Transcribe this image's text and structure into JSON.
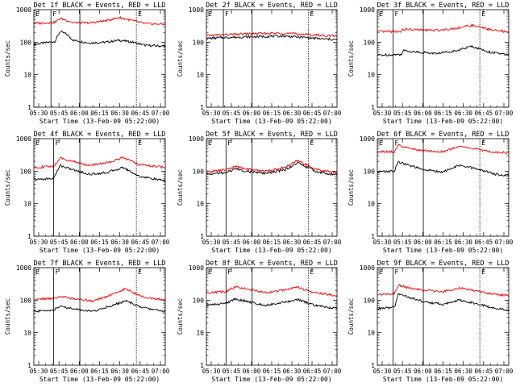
{
  "chart_data": [
    {
      "type": "line",
      "title": "Det 1f BLACK = Events, RED = LLD",
      "xlabel": "Start Time (13-Feb-09 05:22:00)",
      "ylabel": "Counts/sec",
      "x_ticks": [
        "05:30",
        "05:45",
        "06:00",
        "06:15",
        "06:30",
        "06:45",
        "07:00"
      ],
      "y_ticks": [
        "1",
        "10",
        "100",
        "1000"
      ],
      "yscale": "log",
      "ylim": [
        1,
        1000
      ],
      "markers": [
        "E",
        "F",
        "E"
      ],
      "series": [
        {
          "color": "#000000",
          "x": [
            0,
            0.08,
            0.16,
            0.2,
            0.25,
            0.3,
            0.42,
            0.55,
            0.65,
            0.75,
            0.85,
            1
          ],
          "y": [
            85,
            95,
            105,
            215,
            175,
            115,
            95,
            100,
            115,
            100,
            80,
            75
          ]
        },
        {
          "color": "#ff0000",
          "x": [
            0,
            0.08,
            0.16,
            0.2,
            0.25,
            0.3,
            0.42,
            0.55,
            0.65,
            0.75,
            0.85,
            1
          ],
          "y": [
            380,
            390,
            410,
            540,
            470,
            400,
            390,
            460,
            580,
            460,
            370,
            360
          ]
        }
      ]
    },
    {
      "type": "line",
      "title": "Det 2f BLACK = Events, RED = LLD",
      "xlabel": "Start Time (13-Feb-09 05:22:00)",
      "ylabel": "Counts/sec",
      "x_ticks": [
        "05:30",
        "05:45",
        "06:00",
        "06:15",
        "06:30",
        "06:45",
        "07:00"
      ],
      "y_ticks": [
        "1",
        "10",
        "100",
        "1000"
      ],
      "yscale": "log",
      "ylim": [
        1,
        1000
      ],
      "markers": [
        "E",
        "F",
        "E"
      ],
      "series": [
        {
          "color": "#000000",
          "x": [
            0,
            0.15,
            0.3,
            0.45,
            0.6,
            0.75,
            0.9,
            1
          ],
          "y": [
            130,
            140,
            145,
            150,
            155,
            140,
            125,
            120
          ]
        },
        {
          "color": "#ff0000",
          "x": [
            0,
            0.15,
            0.3,
            0.45,
            0.6,
            0.75,
            0.9,
            1
          ],
          "y": [
            160,
            170,
            180,
            185,
            190,
            175,
            160,
            155
          ]
        }
      ]
    },
    {
      "type": "line",
      "title": "Det 3f BLACK = Events, RED = LLD",
      "xlabel": "Start Time (13-Feb-09 05:22:00)",
      "ylabel": "Counts/sec",
      "x_ticks": [
        "05:30",
        "05:45",
        "06:00",
        "06:15",
        "06:30",
        "06:45",
        "07:00"
      ],
      "y_ticks": [
        "1",
        "10",
        "100",
        "1000"
      ],
      "yscale": "log",
      "ylim": [
        1,
        1000
      ],
      "markers": [
        "E",
        "F",
        "E"
      ],
      "series": [
        {
          "color": "#000000",
          "x": [
            0,
            0.18,
            0.2,
            0.3,
            0.45,
            0.6,
            0.72,
            0.85,
            1
          ],
          "y": [
            40,
            42,
            55,
            50,
            45,
            55,
            75,
            50,
            40
          ]
        },
        {
          "color": "#ff0000",
          "x": [
            0,
            0.18,
            0.2,
            0.3,
            0.45,
            0.6,
            0.72,
            0.85,
            1
          ],
          "y": [
            210,
            215,
            250,
            240,
            230,
            270,
            330,
            250,
            200
          ]
        }
      ]
    },
    {
      "type": "line",
      "title": "Det 4f BLACK = Events, RED = LLD",
      "xlabel": "Start Time (13-Feb-09 05:22:00)",
      "ylabel": "Counts/sec",
      "x_ticks": [
        "05:30",
        "05:45",
        "06:00",
        "06:15",
        "06:30",
        "06:45",
        "07:00"
      ],
      "y_ticks": [
        "1",
        "10",
        "100",
        "1000"
      ],
      "yscale": "log",
      "ylim": [
        1,
        1000
      ],
      "markers": [
        "E",
        "F",
        "E"
      ],
      "series": [
        {
          "color": "#000000",
          "x": [
            0,
            0.15,
            0.2,
            0.3,
            0.42,
            0.55,
            0.68,
            0.8,
            1
          ],
          "y": [
            55,
            60,
            150,
            110,
            80,
            90,
            130,
            70,
            50
          ]
        },
        {
          "color": "#ff0000",
          "x": [
            0,
            0.15,
            0.2,
            0.3,
            0.42,
            0.55,
            0.68,
            0.8,
            1
          ],
          "y": [
            130,
            140,
            250,
            200,
            150,
            180,
            260,
            160,
            130
          ]
        }
      ]
    },
    {
      "type": "line",
      "title": "Det 5f BLACK = Events, RED = LLD",
      "xlabel": "Start Time (13-Feb-09 05:22:00)",
      "ylabel": "Counts/sec",
      "x_ticks": [
        "05:30",
        "05:45",
        "06:00",
        "06:15",
        "06:30",
        "06:45",
        "07:00"
      ],
      "y_ticks": [
        "1",
        "10",
        "100",
        "1000"
      ],
      "yscale": "log",
      "ylim": [
        1,
        1000
      ],
      "markers": [
        "E",
        "F",
        "E"
      ],
      "series": [
        {
          "color": "#000000",
          "x": [
            0,
            0.15,
            0.22,
            0.3,
            0.45,
            0.6,
            0.7,
            0.85,
            1
          ],
          "y": [
            80,
            90,
            120,
            100,
            85,
            110,
            180,
            95,
            75
          ]
        },
        {
          "color": "#ff0000",
          "x": [
            0,
            0.15,
            0.22,
            0.3,
            0.45,
            0.6,
            0.7,
            0.85,
            1
          ],
          "y": [
            95,
            110,
            140,
            120,
            100,
            130,
            210,
            110,
            90
          ]
        }
      ]
    },
    {
      "type": "line",
      "title": "Det 6f BLACK = Events, RED = LLD",
      "xlabel": "Start Time (13-Feb-09 05:22:00)",
      "ylabel": "Counts/sec",
      "x_ticks": [
        "05:30",
        "05:45",
        "06:00",
        "06:15",
        "06:30",
        "06:45",
        "07:00"
      ],
      "y_ticks": [
        "1",
        "10",
        "100",
        "1000"
      ],
      "yscale": "log",
      "ylim": [
        1,
        1000
      ],
      "markers": [
        "E",
        "F",
        "E"
      ],
      "series": [
        {
          "color": "#000000",
          "x": [
            0,
            0.13,
            0.16,
            0.22,
            0.35,
            0.5,
            0.62,
            0.75,
            0.9,
            1
          ],
          "y": [
            95,
            100,
            200,
            160,
            110,
            95,
            150,
            120,
            80,
            75
          ]
        },
        {
          "color": "#ff0000",
          "x": [
            0,
            0.13,
            0.16,
            0.22,
            0.35,
            0.5,
            0.62,
            0.75,
            0.9,
            1
          ],
          "y": [
            390,
            400,
            650,
            520,
            420,
            400,
            580,
            480,
            380,
            370
          ]
        }
      ]
    },
    {
      "type": "line",
      "title": "Det 7f BLACK = Events, RED = LLD",
      "xlabel": "Start Time (13-Feb-09 05:22:00)",
      "ylabel": "Counts/sec",
      "x_ticks": [
        "05:30",
        "05:45",
        "06:00",
        "06:15",
        "06:30",
        "06:45",
        "07:00"
      ],
      "y_ticks": [
        "1",
        "10",
        "100",
        "1000"
      ],
      "yscale": "log",
      "ylim": [
        1,
        1000
      ],
      "markers": [
        "E",
        "F",
        "E"
      ],
      "series": [
        {
          "color": "#000000",
          "x": [
            0,
            0.15,
            0.2,
            0.3,
            0.45,
            0.6,
            0.7,
            0.82,
            1
          ],
          "y": [
            45,
            50,
            65,
            55,
            45,
            70,
            95,
            60,
            45
          ]
        },
        {
          "color": "#ff0000",
          "x": [
            0,
            0.15,
            0.2,
            0.3,
            0.45,
            0.6,
            0.7,
            0.82,
            1
          ],
          "y": [
            105,
            115,
            130,
            110,
            95,
            150,
            230,
            130,
            100
          ]
        }
      ]
    },
    {
      "type": "line",
      "title": "Det 8f BLACK = Events, RED = LLD",
      "xlabel": "Start Time (13-Feb-09 05:22:00)",
      "ylabel": "Counts/sec",
      "x_ticks": [
        "05:30",
        "05:45",
        "06:00",
        "06:15",
        "06:30",
        "06:45",
        "07:00"
      ],
      "y_ticks": [
        "1",
        "10",
        "100",
        "1000"
      ],
      "yscale": "log",
      "ylim": [
        1,
        1000
      ],
      "markers": [
        "E",
        "F",
        "E"
      ],
      "series": [
        {
          "color": "#000000",
          "x": [
            0,
            0.15,
            0.22,
            0.32,
            0.45,
            0.58,
            0.7,
            0.82,
            1
          ],
          "y": [
            70,
            80,
            110,
            90,
            70,
            85,
            105,
            70,
            55
          ]
        },
        {
          "color": "#ff0000",
          "x": [
            0,
            0.15,
            0.22,
            0.32,
            0.45,
            0.58,
            0.7,
            0.82,
            1
          ],
          "y": [
            170,
            185,
            260,
            220,
            170,
            200,
            250,
            170,
            140
          ]
        }
      ]
    },
    {
      "type": "line",
      "title": "Det 9f BLACK = Events, RED = LLD",
      "xlabel": "Start Time (13-Feb-09 05:22:00)",
      "ylabel": "Counts/sec",
      "x_ticks": [
        "05:30",
        "05:45",
        "06:00",
        "06:15",
        "06:30",
        "06:45",
        "07:00"
      ],
      "y_ticks": [
        "1",
        "10",
        "100",
        "1000"
      ],
      "yscale": "log",
      "ylim": [
        1,
        1000
      ],
      "markers": [
        "E",
        "F",
        "E"
      ],
      "series": [
        {
          "color": "#000000",
          "x": [
            0,
            0.13,
            0.16,
            0.22,
            0.35,
            0.5,
            0.62,
            0.75,
            0.9,
            1
          ],
          "y": [
            55,
            60,
            160,
            130,
            90,
            75,
            100,
            80,
            55,
            50
          ]
        },
        {
          "color": "#ff0000",
          "x": [
            0,
            0.13,
            0.16,
            0.22,
            0.35,
            0.5,
            0.62,
            0.75,
            0.9,
            1
          ],
          "y": [
            150,
            160,
            300,
            250,
            200,
            180,
            240,
            190,
            150,
            140
          ]
        }
      ]
    }
  ]
}
